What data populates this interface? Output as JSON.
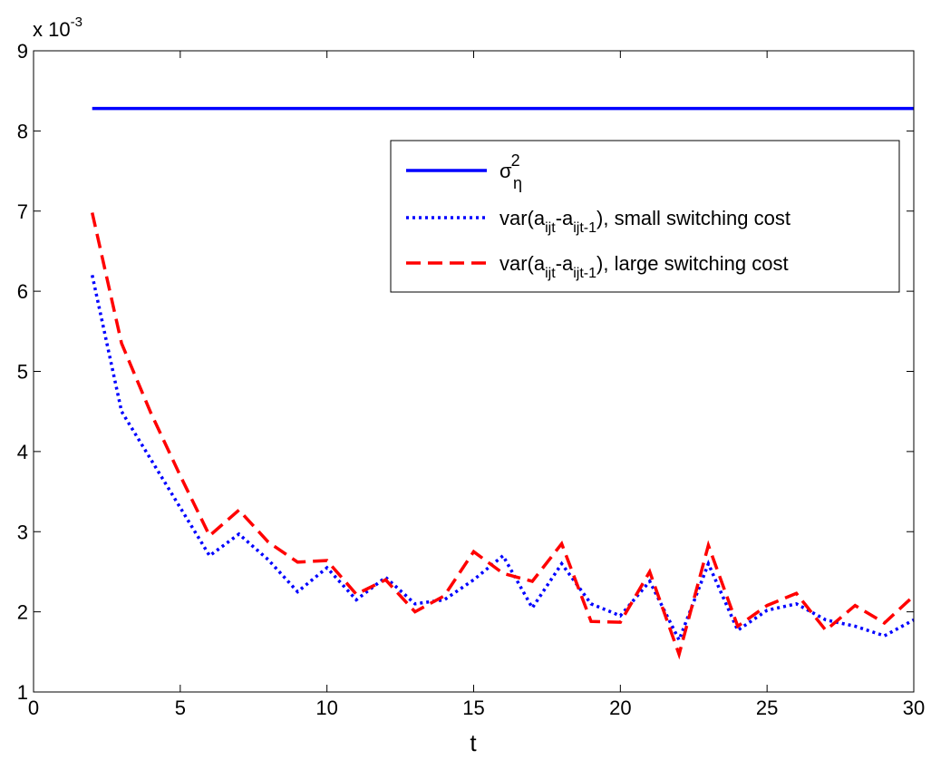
{
  "chart_data": {
    "type": "line",
    "xlabel": "t",
    "ylabel": "",
    "xlim": [
      0,
      30
    ],
    "ylim": [
      1,
      9
    ],
    "x_ticks": [
      "0",
      "5",
      "10",
      "15",
      "20",
      "25",
      "30"
    ],
    "y_ticks": [
      "1",
      "2",
      "3",
      "4",
      "5",
      "6",
      "7",
      "8",
      "9"
    ],
    "y_multiplier": {
      "base": "x 10",
      "exponent": "-3"
    },
    "grid": false,
    "legend_position": "upper-right",
    "series": [
      {
        "name": "σ_η^2",
        "legend": {
          "main": "σ",
          "sup": "2",
          "sub": "η",
          "trail": ""
        },
        "color": "#0000ff",
        "style": "solid",
        "x": [
          2,
          30
        ],
        "y": [
          8.28,
          8.28
        ]
      },
      {
        "name": "var(a_ijt-a_ijt-1), small switching cost",
        "legend": {
          "main": "var(a",
          "sub1": "ijt",
          "mid": "-a",
          "sub2": "ijt-1",
          "trail": "), small switching cost"
        },
        "color": "#0000ff",
        "style": "dotted",
        "x": [
          2,
          3,
          4,
          5,
          6,
          7,
          8,
          9,
          10,
          11,
          12,
          13,
          14,
          15,
          16,
          17,
          18,
          19,
          20,
          21,
          22,
          23,
          24,
          25,
          26,
          27,
          28,
          29,
          30
        ],
        "y": [
          6.2,
          4.5,
          3.9,
          3.3,
          2.7,
          2.97,
          2.65,
          2.25,
          2.55,
          2.15,
          2.43,
          2.1,
          2.15,
          2.4,
          2.7,
          2.05,
          2.6,
          2.1,
          1.95,
          2.38,
          1.65,
          2.6,
          1.77,
          2.02,
          2.1,
          1.9,
          1.82,
          1.7,
          1.9
        ]
      },
      {
        "name": "var(a_ijt-a_ijt-1), large switching cost",
        "legend": {
          "main": "var(a",
          "sub1": "ijt",
          "mid": "-a",
          "sub2": "ijt-1",
          "trail": "), large switching cost"
        },
        "color": "#ff0000",
        "style": "dashed",
        "x": [
          2,
          3,
          4,
          5,
          6,
          7,
          8,
          9,
          10,
          11,
          12,
          13,
          14,
          15,
          16,
          17,
          18,
          19,
          20,
          21,
          22,
          23,
          24,
          25,
          26,
          27,
          28,
          29,
          30
        ],
        "y": [
          6.98,
          5.35,
          4.48,
          3.7,
          2.95,
          3.27,
          2.87,
          2.62,
          2.64,
          2.22,
          2.4,
          2.0,
          2.2,
          2.75,
          2.48,
          2.38,
          2.85,
          1.88,
          1.87,
          2.5,
          1.47,
          2.83,
          1.82,
          2.08,
          2.23,
          1.77,
          2.08,
          1.86,
          2.2
        ]
      }
    ]
  }
}
